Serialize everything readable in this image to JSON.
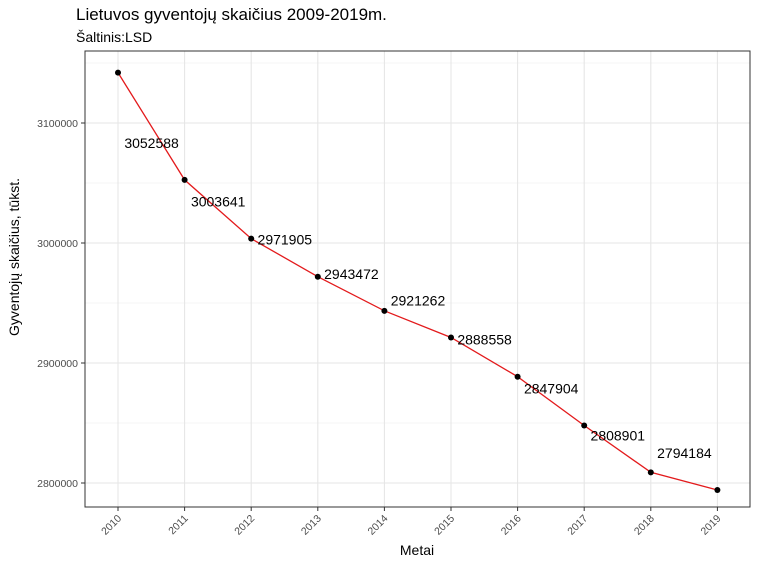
{
  "chart_data": {
    "type": "line",
    "title": "Lietuvos gyventojų skaičius 2009-2019m.",
    "subtitle": "Šaltinis:LSD",
    "xlabel": "Metai",
    "ylabel": "Gyventojų skaičius, tūkst.",
    "x": [
      "2010",
      "2011",
      "2012",
      "2013",
      "2014",
      "2015",
      "2016",
      "2017",
      "2018",
      "2019"
    ],
    "y": [
      3141976,
      3052588,
      3003641,
      2971905,
      2943472,
      2921262,
      2888558,
      2847904,
      2808901,
      2794184
    ],
    "data_labels": [
      "",
      "3052588",
      "3003641",
      "2971905",
      "2943472",
      "2921262",
      "2888558",
      "2847904",
      "2808901",
      "2794184"
    ],
    "y_ticks": [
      2800000,
      2900000,
      3000000,
      3100000
    ],
    "ylim": [
      2780000,
      3160000
    ],
    "line_color": "#e31a1c",
    "point_color": "#000000",
    "grid": true
  }
}
